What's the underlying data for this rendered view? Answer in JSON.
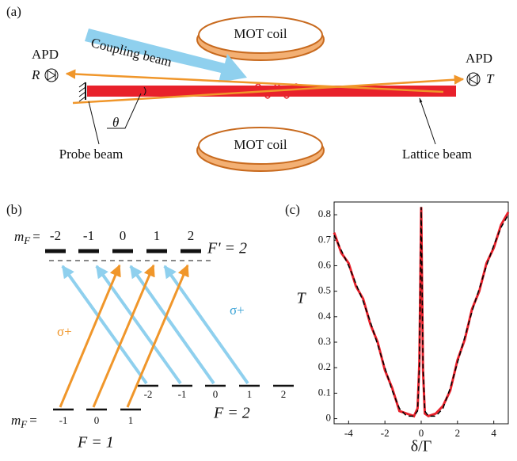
{
  "panel_a": {
    "label": "(a)",
    "apd_left": "APD",
    "apd_left_symbol": "R",
    "apd_right": "APD",
    "apd_right_symbol": "T",
    "coupling_beam": "Coupling beam",
    "coil_top": "MOT coil",
    "coil_bottom": "MOT coil",
    "angle": "θ",
    "probe_beam": "Probe beam",
    "lattice_beam": "Lattice beam"
  },
  "panel_b": {
    "label": "(b)",
    "m_symbol": "m",
    "m_sub": "F",
    "m_eq": "=",
    "upper_levels": [
      "-2",
      "-1",
      "0",
      "1",
      "2"
    ],
    "upper_name": "F' = 2",
    "sigma_orange": "σ+",
    "sigma_blue": "σ+",
    "lower2_levels": [
      "-2",
      "-1",
      "0",
      "1",
      "2"
    ],
    "lower2_name": "F = 2",
    "lower1_levels": [
      "-1",
      "0",
      "1"
    ],
    "lower1_name": "F = 1"
  },
  "chart_data": {
    "type": "line",
    "label": "(c)",
    "ylabel": "T",
    "xlabel": "δ/Γ",
    "x": [
      -4.8,
      -4.4,
      -4.0,
      -3.6,
      -3.2,
      -2.8,
      -2.4,
      -2.0,
      -1.6,
      -1.2,
      -0.8,
      -0.4,
      -0.2,
      -0.1,
      0,
      0.1,
      0.2,
      0.4,
      0.8,
      1.2,
      1.6,
      2.0,
      2.4,
      2.8,
      3.2,
      3.6,
      4.0,
      4.4,
      4.8
    ],
    "series": [
      {
        "color": "#e8212b",
        "values": [
          0.73,
          0.65,
          0.61,
          0.52,
          0.47,
          0.37,
          0.3,
          0.19,
          0.12,
          0.03,
          0.02,
          0.01,
          0.04,
          0.22,
          0.83,
          0.19,
          0.02,
          0.01,
          0.02,
          0.05,
          0.11,
          0.23,
          0.31,
          0.43,
          0.5,
          0.61,
          0.67,
          0.76,
          0.81
        ]
      },
      {
        "color": "#000000",
        "dashed": true,
        "values": [
          0.72,
          0.66,
          0.6,
          0.53,
          0.46,
          0.38,
          0.29,
          0.2,
          0.11,
          0.04,
          0.01,
          0.01,
          0.03,
          0.2,
          0.83,
          0.2,
          0.03,
          0.01,
          0.01,
          0.04,
          0.12,
          0.22,
          0.32,
          0.42,
          0.51,
          0.6,
          0.68,
          0.75,
          0.8
        ]
      }
    ],
    "xlim": [
      -4.8,
      4.8
    ],
    "xticks": [
      -4,
      -2,
      0,
      2,
      4
    ],
    "ylim": [
      -0.02,
      0.85
    ],
    "yticks": [
      0,
      0.1,
      0.2,
      0.3,
      0.4,
      0.5,
      0.6,
      0.7,
      0.8
    ]
  }
}
